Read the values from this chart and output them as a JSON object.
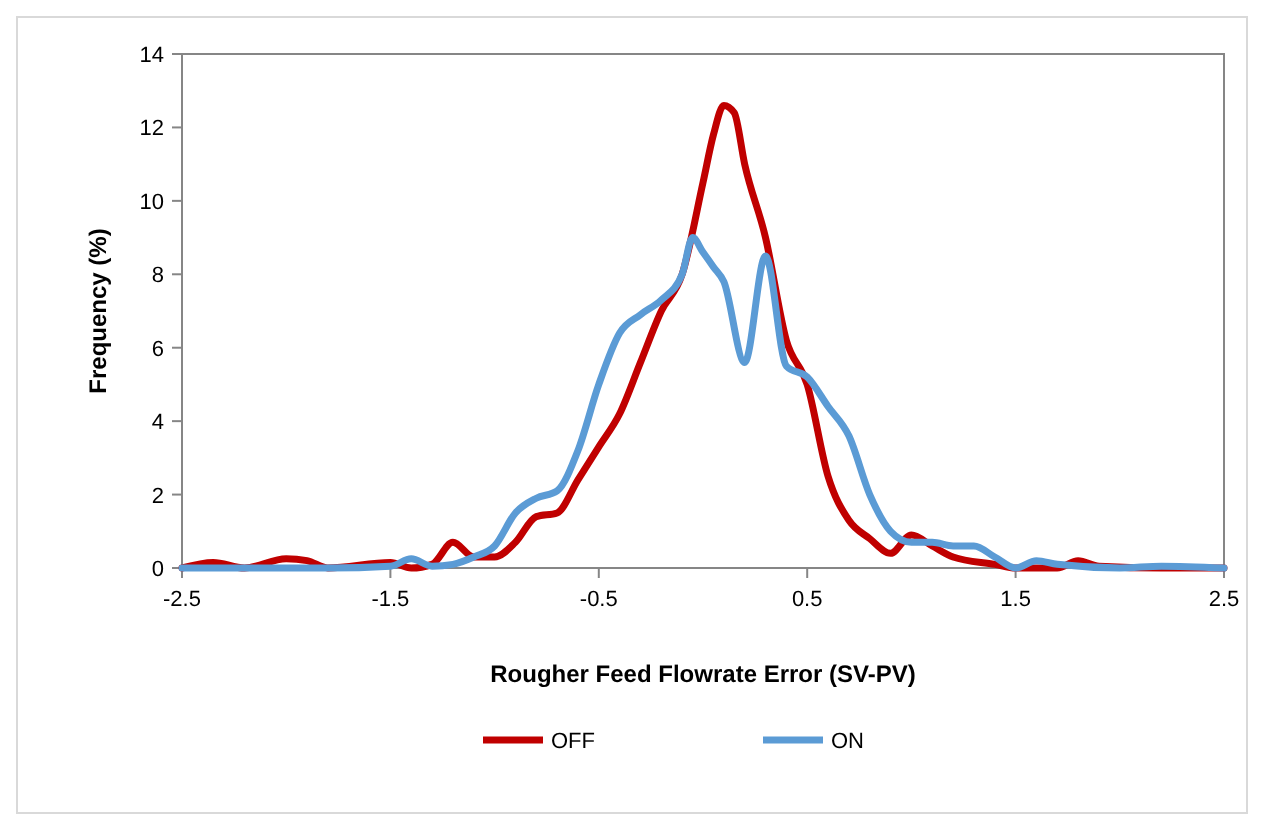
{
  "chart_data": {
    "type": "line",
    "xlabel": "Rougher Feed Flowrate Error (SV-PV)",
    "ylabel": "Frequency (%)",
    "xlim": [
      -2.5,
      2.5
    ],
    "xticks": [
      -2.5,
      -1.5,
      -0.5,
      0.5,
      1.5,
      2.5
    ],
    "ylim": [
      0,
      14
    ],
    "yticks": [
      0,
      2,
      4,
      6,
      8,
      10,
      12,
      14
    ],
    "grid": false,
    "legend": "bottom",
    "marker": "none",
    "line_style": "solid",
    "series": [
      {
        "name": "OFF",
        "color": "#c00000",
        "x": [
          -2.5,
          -2.35,
          -2.2,
          -2.0,
          -1.9,
          -1.8,
          -1.5,
          -1.4,
          -1.3,
          -1.2,
          -1.1,
          -1.0,
          -0.9,
          -0.8,
          -0.7,
          -0.6,
          -0.5,
          -0.4,
          -0.3,
          -0.2,
          -0.1,
          0,
          0.05,
          0.1,
          0.15,
          0.2,
          0.3,
          0.4,
          0.5,
          0.6,
          0.7,
          0.8,
          0.9,
          1.0,
          1.1,
          1.2,
          1.4,
          1.5,
          1.7,
          1.8,
          1.9,
          2.2,
          2.5
        ],
        "values": [
          0,
          0.15,
          0,
          0.25,
          0.2,
          0,
          0.15,
          0,
          0.1,
          0.7,
          0.3,
          0.3,
          0.7,
          1.4,
          1.5,
          2.4,
          3.3,
          4.2,
          5.6,
          7.0,
          8.0,
          10.5,
          11.8,
          12.6,
          12.4,
          11.0,
          9.0,
          6.2,
          5.0,
          2.5,
          1.3,
          0.8,
          0.4,
          0.9,
          0.6,
          0.3,
          0.1,
          0,
          0,
          0.2,
          0.05,
          0,
          0
        ]
      },
      {
        "name": "ON",
        "color": "#5b9bd5",
        "x": [
          -2.5,
          -2.0,
          -1.8,
          -1.5,
          -1.4,
          -1.3,
          -1.2,
          -1.1,
          -1.0,
          -0.9,
          -0.8,
          -0.7,
          -0.6,
          -0.5,
          -0.4,
          -0.3,
          -0.2,
          -0.1,
          -0.05,
          0,
          0.05,
          0.1,
          0.2,
          0.3,
          0.4,
          0.5,
          0.6,
          0.7,
          0.8,
          0.9,
          1.0,
          1.1,
          1.2,
          1.3,
          1.4,
          1.5,
          1.6,
          1.7,
          2.0,
          2.2,
          2.5
        ],
        "values": [
          0,
          0,
          0,
          0.05,
          0.25,
          0.05,
          0.1,
          0.3,
          0.6,
          1.5,
          1.9,
          2.1,
          3.2,
          5.0,
          6.4,
          6.9,
          7.3,
          8.0,
          9.0,
          8.6,
          8.2,
          7.8,
          5.6,
          8.5,
          5.5,
          5.2,
          4.4,
          3.6,
          2.0,
          1.0,
          0.7,
          0.7,
          0.6,
          0.6,
          0.3,
          0,
          0.2,
          0.1,
          0,
          0.05,
          0
        ]
      }
    ]
  }
}
